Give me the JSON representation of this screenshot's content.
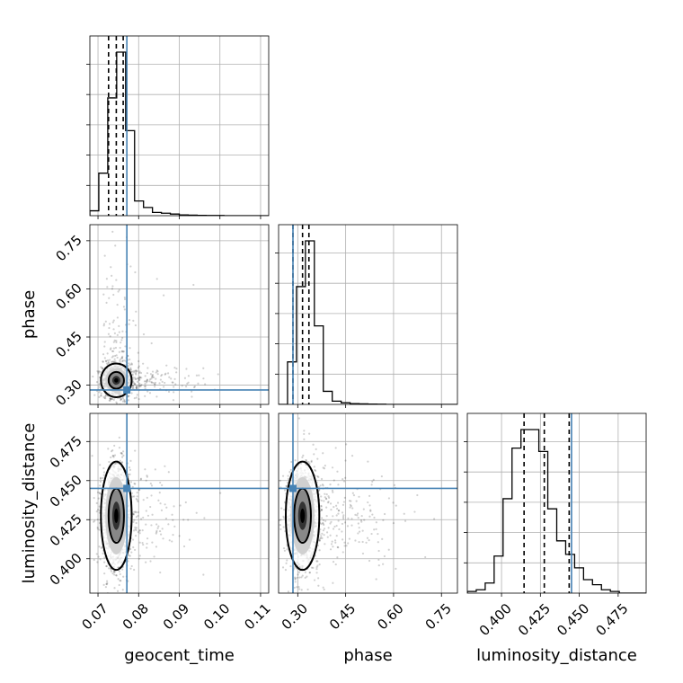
{
  "chart_data": {
    "type": "corner",
    "parameters": [
      "geocent_time",
      "phase",
      "luminosity_distance"
    ],
    "ranges": {
      "geocent_time": [
        0.068,
        0.112
      ],
      "phase": [
        0.24,
        0.8
      ],
      "luminosity_distance": [
        0.378,
        0.493
      ]
    },
    "ticks": {
      "geocent_time": [
        {
          "v": 0.07,
          "label": "0.07"
        },
        {
          "v": 0.08,
          "label": "0.08"
        },
        {
          "v": 0.09,
          "label": "0.09"
        },
        {
          "v": 0.1,
          "label": "0.10"
        },
        {
          "v": 0.11,
          "label": "0.11"
        }
      ],
      "phase": [
        {
          "v": 0.3,
          "label": "0.30"
        },
        {
          "v": 0.45,
          "label": "0.45"
        },
        {
          "v": 0.6,
          "label": "0.60"
        },
        {
          "v": 0.75,
          "label": "0.75"
        }
      ],
      "luminosity_distance": [
        {
          "v": 0.4,
          "label": "0.400"
        },
        {
          "v": 0.425,
          "label": "0.425"
        },
        {
          "v": 0.45,
          "label": "0.450"
        },
        {
          "v": 0.475,
          "label": "0.475"
        }
      ]
    },
    "truths": {
      "geocent_time": 0.0771,
      "phase": 0.285,
      "luminosity_distance": 0.445
    },
    "quantiles": {
      "geocent_time": [
        0.0726,
        0.0745,
        0.0762
      ],
      "phase": [
        0.285,
        0.315,
        0.335
      ],
      "luminosity_distance": [
        0.4145,
        0.4275,
        0.4435
      ]
    },
    "histograms": {
      "geocent_time": {
        "range": [
          0.068,
          0.112
        ],
        "bins": 20,
        "counts": [
          0.03,
          0.26,
          0.72,
          1.0,
          0.52,
          0.09,
          0.05,
          0.02,
          0.015,
          0.01,
          0.005,
          0.003,
          0.002,
          0.001,
          0.001,
          0.0,
          0.0,
          0.0,
          0.0,
          0.0
        ]
      },
      "phase": {
        "range": [
          0.24,
          0.8
        ],
        "bins": 20,
        "counts": [
          0.0,
          0.26,
          0.72,
          1.0,
          0.48,
          0.08,
          0.02,
          0.01,
          0.005,
          0.003,
          0.002,
          0.001,
          0.0,
          0.0,
          0.0,
          0.0,
          0.0,
          0.0,
          0.0,
          0.0
        ]
      },
      "luminosity_distance": {
        "range": [
          0.378,
          0.493
        ],
        "bins": 20,
        "counts": [
          0.01,
          0.02,
          0.06,
          0.22,
          0.56,
          0.86,
          0.97,
          0.97,
          0.84,
          0.5,
          0.31,
          0.23,
          0.15,
          0.08,
          0.05,
          0.02,
          0.01,
          0.0,
          0.0,
          0.0
        ]
      }
    },
    "posterior": {
      "means": {
        "geocent_time": 0.0745,
        "phase": 0.315,
        "luminosity_distance": 0.4275
      },
      "stds": {
        "geocent_time": 0.0018,
        "phase": 0.025,
        "luminosity_distance": 0.0165
      },
      "contour_levels_sigma": [
        1,
        2
      ],
      "samples_shown": 1500
    }
  }
}
